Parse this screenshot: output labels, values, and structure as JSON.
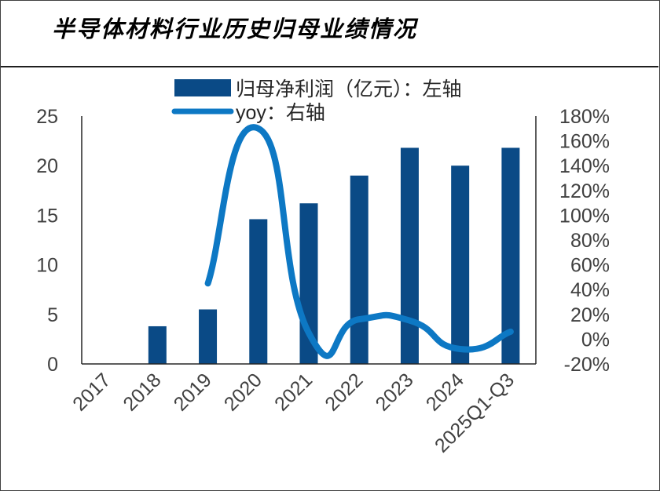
{
  "title": "半导体材料行业历史归母业绩情况",
  "chart_data": {
    "type": "bar",
    "categories": [
      "2017",
      "2018",
      "2019",
      "2020",
      "2021",
      "2022",
      "2023",
      "2024",
      "2025Q1-Q3"
    ],
    "series": [
      {
        "name": "归母净利润（亿元）：左轴",
        "type": "bar",
        "axis": "left",
        "color": "#0a4a86",
        "values": [
          0,
          3.8,
          5.5,
          14.6,
          16.2,
          19.0,
          21.8,
          20.0,
          21.8
        ]
      },
      {
        "name": "yoy：右轴",
        "type": "line",
        "axis": "right",
        "color": "#0d78c4",
        "smooth": true,
        "values": [
          null,
          null,
          45,
          170,
          5,
          16,
          15,
          -8,
          6
        ]
      }
    ],
    "y_left": {
      "min": 0,
      "max": 25,
      "ticks": [
        "0",
        "5",
        "10",
        "15",
        "20",
        "25"
      ]
    },
    "y_right": {
      "min": -20,
      "max": 180,
      "ticks": [
        "-20%",
        "0%",
        "20%",
        "40%",
        "60%",
        "80%",
        "100%",
        "120%",
        "140%",
        "160%",
        "180%"
      ]
    },
    "legend_position": "top",
    "grid": false
  }
}
